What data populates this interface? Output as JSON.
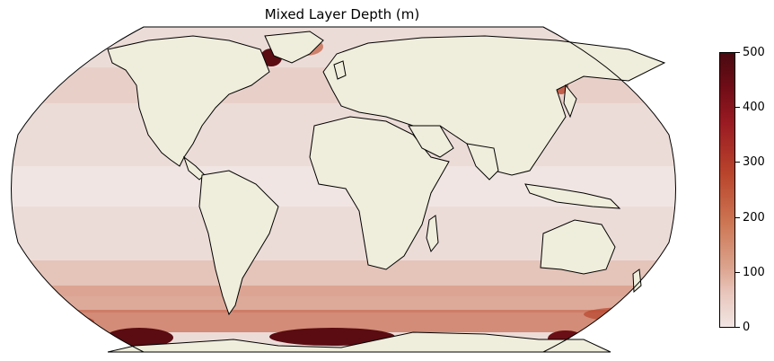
{
  "title": "Mixed Layer Depth (m)",
  "colorbar": {
    "min": 0,
    "max": 500,
    "ticks": [
      "0",
      "100",
      "200",
      "300",
      "400",
      "500"
    ],
    "colors": [
      "#f1e5e3",
      "#e9c7bd",
      "#dba28c",
      "#cd7653",
      "#b9442c",
      "#9b1b22",
      "#6e0c16",
      "#4a0a10"
    ]
  },
  "map": {
    "projection": "Robinson",
    "land_color": "#efeddb",
    "ocean_base_color": "#ecdcd8",
    "coastline_color": "#000000"
  }
}
